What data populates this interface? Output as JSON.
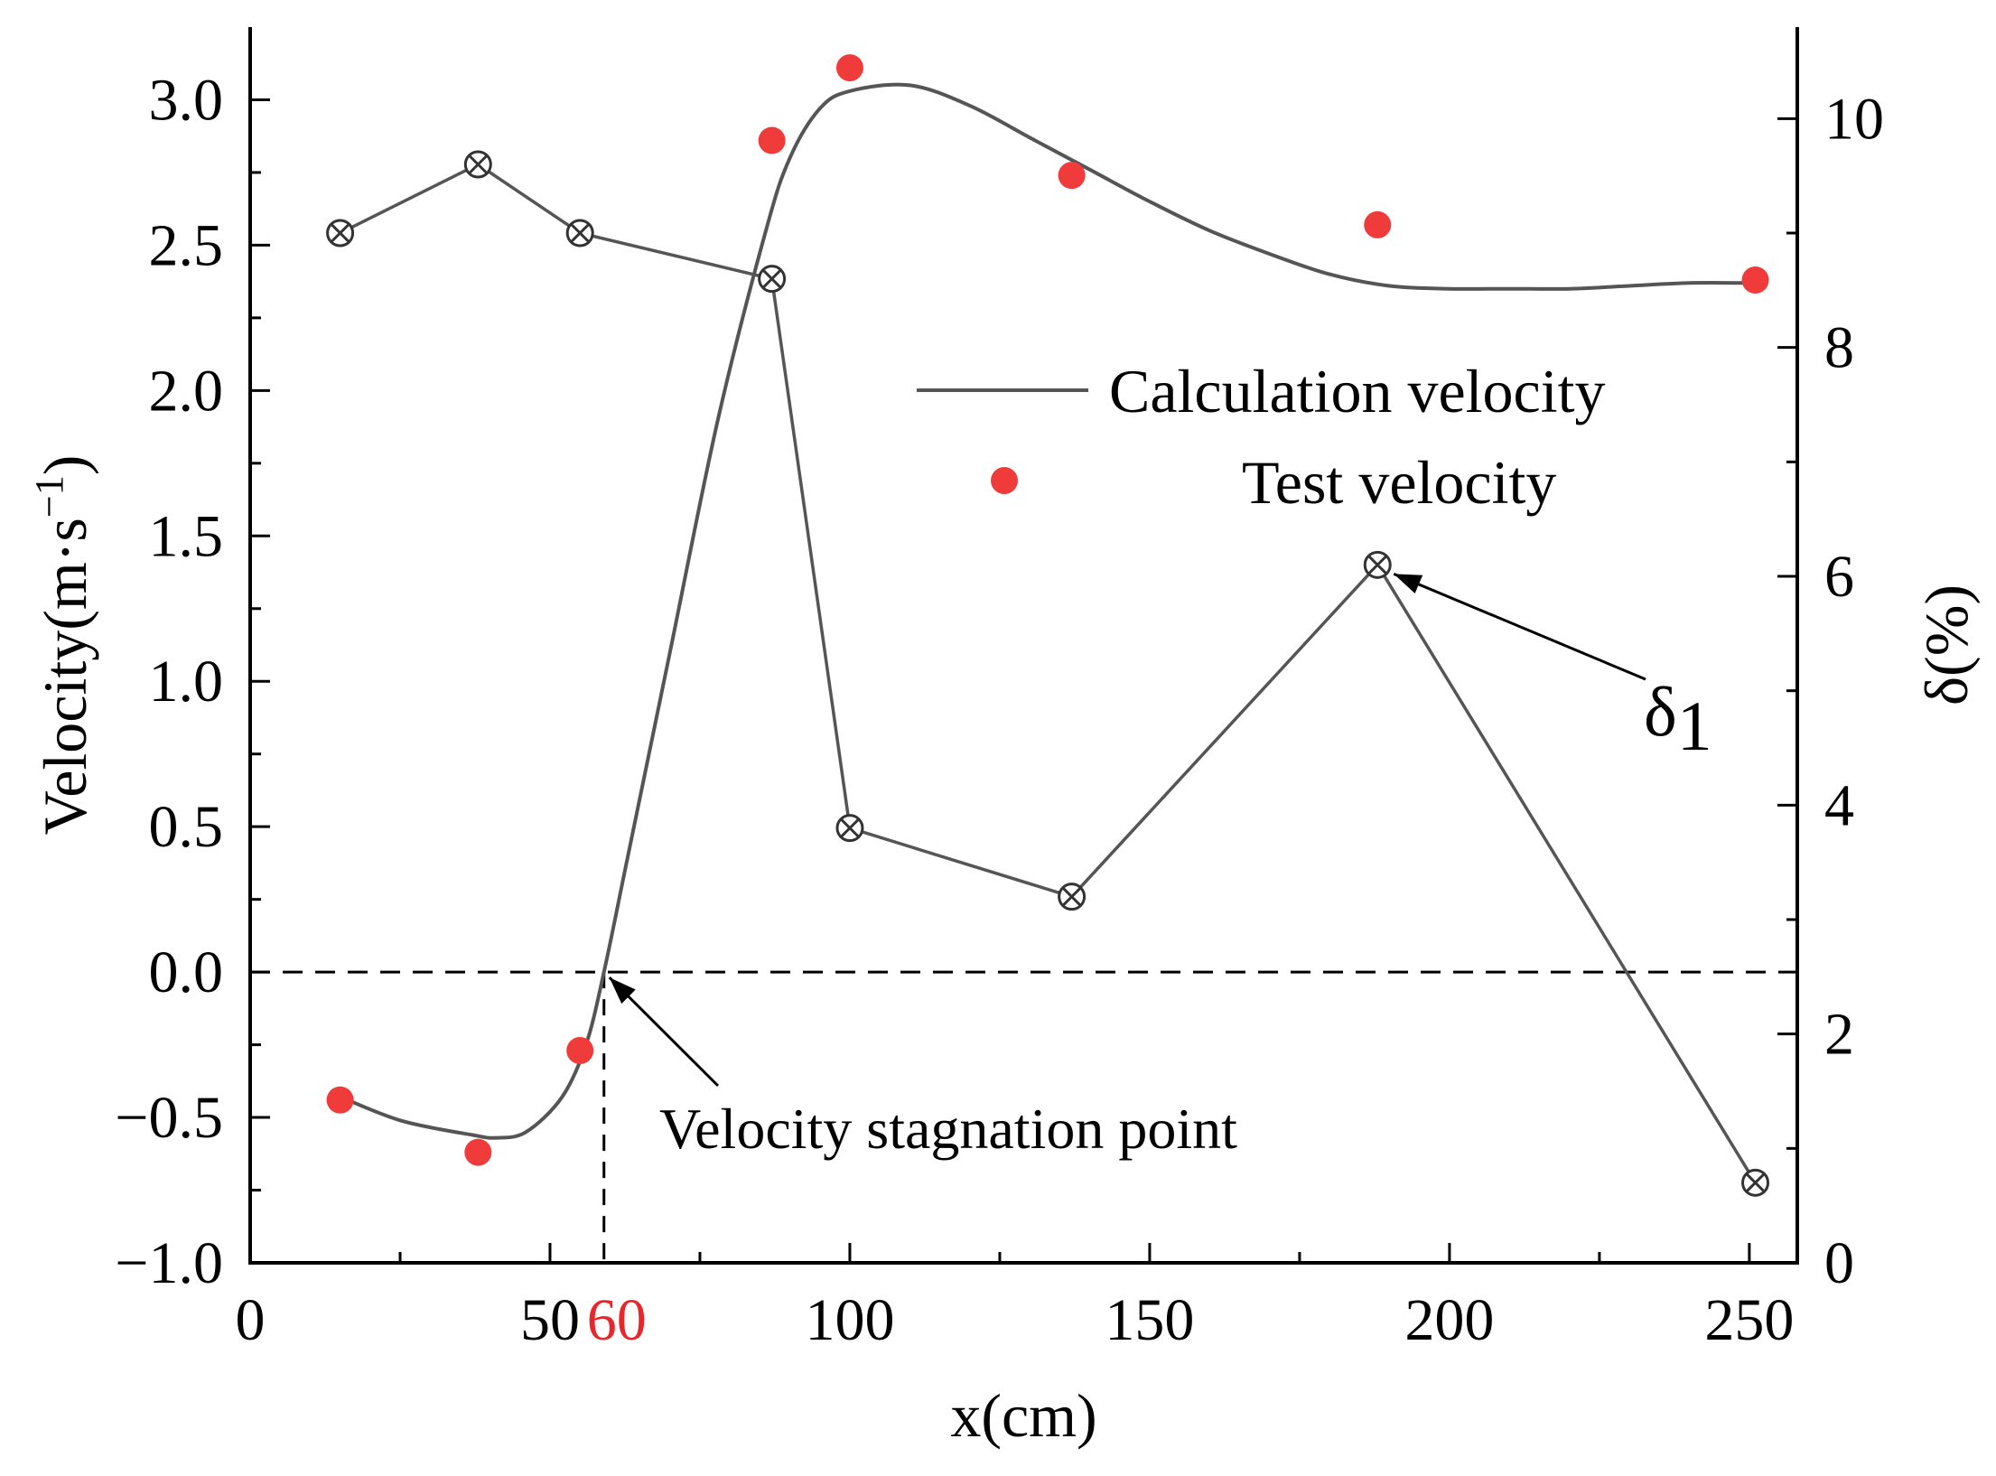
{
  "chart_data": {
    "type": "line",
    "title": "",
    "xlabel": "x(cm)",
    "ylabel_left": "Velocity(m·s",
    "ylabel_left_exponent": "−1",
    "ylabel_left_close": ")",
    "ylabel_right": "δ(%)",
    "xlim": [
      0,
      258
    ],
    "ylim_left": [
      -1.0,
      3.25
    ],
    "ylim_right": [
      0,
      10.8
    ],
    "x_ticks": [
      0,
      50,
      100,
      150,
      200,
      250
    ],
    "x_tick_labels": [
      "0",
      "50",
      "100",
      "150",
      "200",
      "250"
    ],
    "x_highlight_tick": {
      "value": 59,
      "label": "60",
      "color": "#e8262b"
    },
    "y_left_ticks": [
      -1.0,
      -0.5,
      0.0,
      0.5,
      1.0,
      1.5,
      2.0,
      2.5,
      3.0
    ],
    "y_left_tick_labels": [
      "−1.0",
      "−0.5",
      "0.0",
      "0.5",
      "1.0",
      "1.5",
      "2.0",
      "2.5",
      "3.0"
    ],
    "y_right_ticks": [
      0,
      2,
      4,
      6,
      8,
      10
    ],
    "y_right_tick_labels": [
      "0",
      "2",
      "4",
      "6",
      "8",
      "10"
    ],
    "zero_line": 0.0,
    "stagnation_x": 59,
    "series": [
      {
        "name": "Calculation velocity",
        "axis": "left",
        "style": "smooth-line",
        "color": "#555555",
        "x": [
          14,
          25,
          37,
          41,
          46,
          52,
          56,
          59,
          63,
          70,
          78,
          86,
          90,
          95,
          100,
          110,
          120,
          130,
          140,
          150,
          160,
          170,
          180,
          190,
          200,
          210,
          220,
          230,
          240,
          250
        ],
        "values": [
          -0.42,
          -0.51,
          -0.56,
          -0.57,
          -0.55,
          -0.43,
          -0.25,
          0.0,
          0.4,
          1.1,
          1.9,
          2.55,
          2.8,
          2.97,
          3.03,
          3.05,
          2.98,
          2.87,
          2.76,
          2.65,
          2.55,
          2.47,
          2.4,
          2.36,
          2.35,
          2.35,
          2.35,
          2.36,
          2.37,
          2.37
        ]
      },
      {
        "name": "Test velocity",
        "axis": "left",
        "style": "marker",
        "color": "#f03b3b",
        "x": [
          15,
          38,
          55,
          87,
          100,
          137,
          188,
          251
        ],
        "values": [
          -0.44,
          -0.62,
          -0.27,
          2.86,
          3.11,
          2.74,
          2.57,
          2.38
        ]
      },
      {
        "name": "δ1",
        "axis": "right",
        "style": "line-marker",
        "color": "#555555",
        "x": [
          15,
          38,
          55,
          87,
          100,
          137,
          188,
          251
        ],
        "values": [
          9.0,
          9.6,
          9.0,
          8.6,
          3.8,
          3.2,
          6.1,
          0.7
        ]
      }
    ],
    "legend": {
      "position": "upper-right",
      "entries": [
        "Calculation velocity",
        "Test velocity"
      ]
    },
    "annotations": [
      {
        "text": "Velocity stagnation point",
        "target_x": 59,
        "target_y": 0.0
      },
      {
        "text": "δ",
        "subscript": "1",
        "target_x": 188,
        "target_y_right": 6.1
      }
    ]
  }
}
